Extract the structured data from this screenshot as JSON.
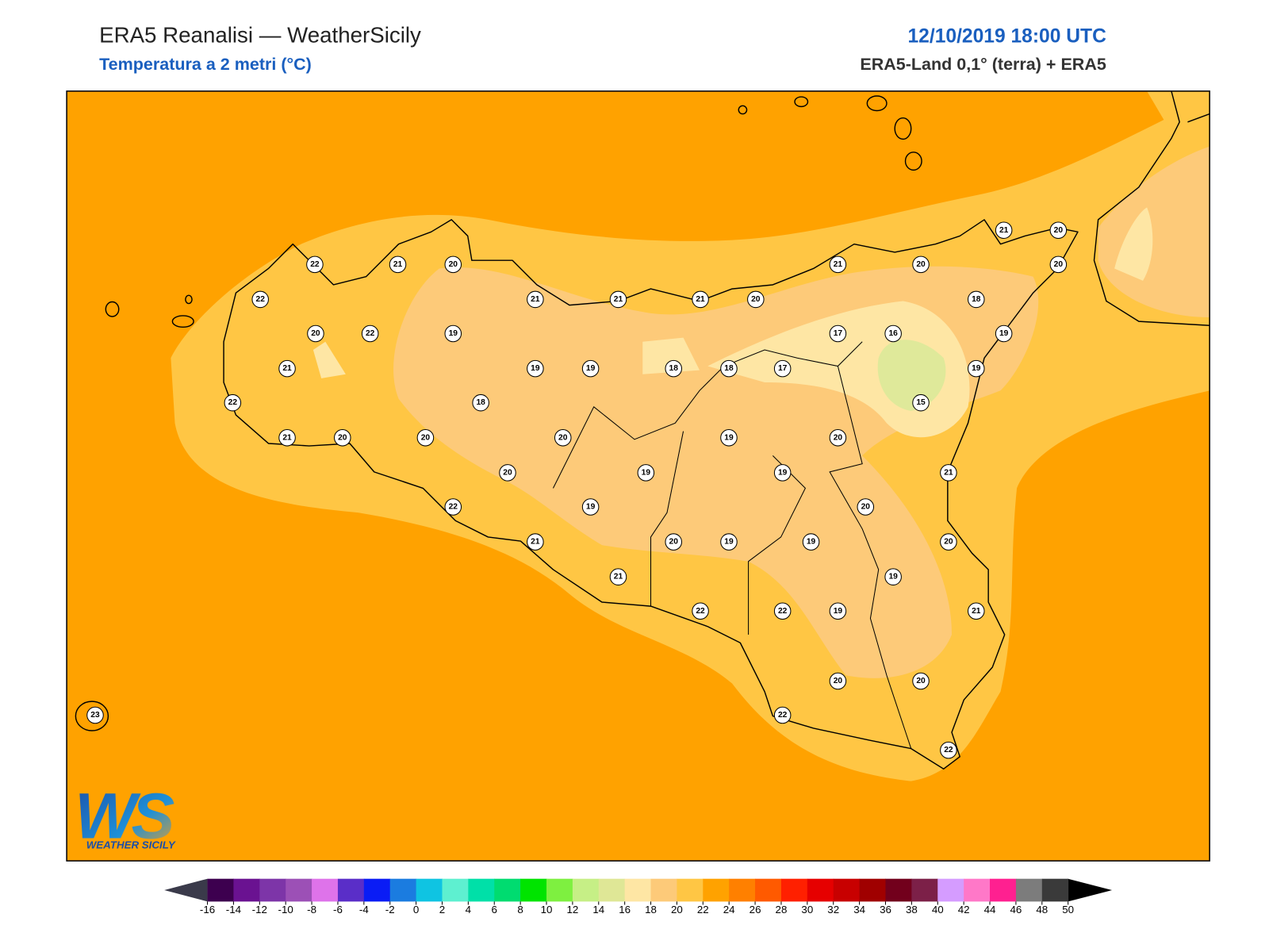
{
  "header": {
    "title": "ERA5 Reanalisi — WeatherSicily",
    "subtitle": "Temperatura a 2 metri (°C)",
    "datetime": "12/10/2019 18:00 UTC",
    "source": "ERA5-Land 0,1° (terra) + ERA5"
  },
  "stations": [
    22,
    21,
    20,
    22,
    21,
    21,
    21,
    20,
    21,
    20,
    21,
    20,
    20,
    18,
    20,
    22,
    19,
    17,
    16,
    19,
    21,
    19,
    19,
    18,
    18,
    17,
    19,
    22,
    18,
    15,
    21,
    20,
    20,
    20,
    19,
    20,
    20,
    19,
    19,
    21,
    22,
    19,
    20,
    21,
    20,
    19,
    19,
    20,
    21,
    19,
    22,
    22,
    19,
    21,
    20,
    20,
    22,
    22,
    23
  ],
  "colorbar": {
    "ticks": [
      -16,
      -14,
      -12,
      -10,
      -8,
      -6,
      -4,
      -2,
      0,
      2,
      4,
      6,
      8,
      10,
      12,
      14,
      16,
      18,
      20,
      22,
      24,
      26,
      28,
      30,
      32,
      34,
      36,
      38,
      40,
      42,
      44,
      46,
      48,
      50
    ],
    "colors": [
      "#3d004f",
      "#6a1291",
      "#7d35a8",
      "#9c50b6",
      "#de73ea",
      "#5a2ec8",
      "#0a1cf5",
      "#1b7ce0",
      "#0fc4e2",
      "#5ef0d0",
      "#00e0a8",
      "#00dc70",
      "#00e400",
      "#7ef040",
      "#c6ef86",
      "#dfe796",
      "#fee6a4",
      "#fdca79",
      "#ffc644",
      "#ffa200",
      "#ff8000",
      "#ff5a00",
      "#ff2000",
      "#e60000",
      "#c80000",
      "#a00000",
      "#72001c",
      "#7c2048",
      "#d59cff",
      "#ff78c8",
      "#ff2090",
      "#7c7c7c",
      "#3a3a3a"
    ],
    "under": "#3a3a4a",
    "over": "#000000"
  },
  "logo": {
    "mark": "WS",
    "name": "WEATHER SICILY"
  }
}
